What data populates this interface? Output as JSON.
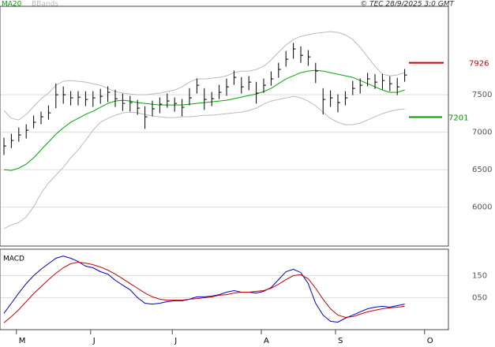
{
  "header": {
    "annotation": "© TEC 28/9/2025 3:0 GMT"
  },
  "chart_data": [
    {
      "type": "ohlc",
      "bar_color": "#000000",
      "high": [
        6926,
        6979,
        7063,
        7106,
        7222,
        7275,
        7358,
        7650,
        7610,
        7548,
        7548,
        7547,
        7548,
        7579,
        7612,
        7567,
        7514,
        7485,
        7431,
        7345,
        7421,
        7464,
        7516,
        7464,
        7442,
        7588,
        7716,
        7587,
        7537,
        7632,
        7715,
        7822,
        7735,
        7748,
        7671,
        7716,
        7811,
        7927,
        8084,
        8191,
        8146,
        8095,
        7926,
        7587,
        7558,
        7505,
        7548,
        7684,
        7716,
        7791,
        7778,
        7779,
        7747,
        7725,
        7843,
        null,
        null,
        null,
        null,
        null
      ],
      "low": [
        6696,
        6789,
        6873,
        6916,
        7052,
        7105,
        7168,
        7320,
        7380,
        7358,
        7358,
        7347,
        7338,
        7379,
        7402,
        7337,
        7284,
        7275,
        7231,
        7045,
        7211,
        7254,
        7326,
        7274,
        7212,
        7358,
        7516,
        7297,
        7347,
        7442,
        7485,
        7632,
        7515,
        7558,
        7381,
        7526,
        7621,
        7727,
        7874,
        7981,
        7926,
        7885,
        7656,
        7237,
        7338,
        7265,
        7358,
        7494,
        7516,
        7611,
        7578,
        7569,
        7547,
        7495,
        7673,
        null,
        null,
        null,
        null,
        null
      ],
      "close": [
        6816,
        6889,
        6963,
        7026,
        7132,
        7205,
        7258,
        7500,
        7500,
        7458,
        7468,
        7437,
        7458,
        7479,
        7532,
        7447,
        7384,
        7395,
        7321,
        7205,
        7311,
        7374,
        7416,
        7384,
        7332,
        7458,
        7626,
        7437,
        7447,
        7532,
        7605,
        7732,
        7605,
        7668,
        7521,
        7626,
        7711,
        7837,
        7974,
        8111,
        8026,
        8005,
        7816,
        7437,
        7458,
        7395,
        7458,
        7584,
        7626,
        7711,
        7668,
        7689,
        7647,
        7605,
        7763,
        null,
        null,
        null,
        null,
        null
      ],
      "series": [
        {
          "name": "MA20",
          "color": "#00aa00",
          "values": [
            6500,
            6490,
            6521,
            6574,
            6658,
            6763,
            6868,
            6974,
            7058,
            7132,
            7184,
            7237,
            7279,
            7332,
            7384,
            7416,
            7426,
            7416,
            7395,
            7384,
            7374,
            7363,
            7363,
            7363,
            7363,
            7374,
            7384,
            7395,
            7405,
            7416,
            7426,
            7447,
            7468,
            7489,
            7511,
            7542,
            7584,
            7647,
            7711,
            7753,
            7795,
            7816,
            7826,
            7816,
            7795,
            7774,
            7753,
            7732,
            7689,
            7647,
            7605,
            7563,
            7532,
            7532,
            7563,
            null,
            null,
            null,
            null,
            null
          ]
        },
        {
          "name": "BBands",
          "color": "#bbbbbb",
          "upper": [
            7289,
            7184,
            7163,
            7237,
            7342,
            7447,
            7521,
            7626,
            7679,
            7689,
            7679,
            7668,
            7647,
            7626,
            7584,
            7542,
            7521,
            7511,
            7500,
            7500,
            7511,
            7521,
            7542,
            7563,
            7605,
            7668,
            7711,
            7711,
            7721,
            7732,
            7753,
            7795,
            7816,
            7816,
            7837,
            7879,
            7963,
            8068,
            8163,
            8237,
            8279,
            8300,
            8321,
            8332,
            8342,
            8332,
            8300,
            8237,
            8132,
            8005,
            7879,
            7774,
            7753,
            7763,
            7795,
            null,
            null,
            null,
            null,
            null
          ],
          "lower": [
            5711,
            5763,
            5795,
            5868,
            6005,
            6184,
            6321,
            6426,
            6532,
            6658,
            6763,
            6889,
            7026,
            7132,
            7184,
            7226,
            7258,
            7268,
            7258,
            7237,
            7216,
            7205,
            7195,
            7195,
            7205,
            7205,
            7216,
            7226,
            7226,
            7237,
            7247,
            7258,
            7268,
            7289,
            7321,
            7374,
            7416,
            7437,
            7458,
            7479,
            7458,
            7416,
            7353,
            7268,
            7184,
            7132,
            7100,
            7100,
            7121,
            7163,
            7205,
            7247,
            7279,
            7300,
            7311,
            null,
            null,
            null,
            null,
            null
          ]
        }
      ],
      "levels": [
        {
          "value": 7926,
          "color": "#cc0000"
        },
        {
          "value": 7201,
          "color": "#009900"
        }
      ],
      "ylim": [
        5480,
        8680
      ],
      "yticks": [
        6000,
        6500,
        7000,
        7500
      ],
      "grid": true
    },
    {
      "type": "line",
      "title": "MACD",
      "categories": [
        null,
        null,
        "M",
        null,
        null,
        null,
        null,
        null,
        null,
        null,
        null,
        null,
        "J",
        null,
        null,
        null,
        null,
        null,
        null,
        null,
        null,
        null,
        null,
        "J",
        null,
        null,
        null,
        null,
        null,
        null,
        null,
        null,
        null,
        null,
        null,
        "A",
        null,
        null,
        null,
        null,
        null,
        null,
        null,
        null,
        null,
        "S",
        null,
        null,
        null,
        null,
        null,
        null,
        null,
        null,
        null,
        null,
        null,
        "O",
        null,
        null
      ],
      "series": [
        {
          "color": "#0000cc",
          "values": [
            -21,
            25,
            71,
            114,
            150,
            179,
            204,
            229,
            239,
            229,
            214,
            193,
            186,
            168,
            157,
            129,
            107,
            86,
            50,
            25,
            21,
            25,
            32,
            36,
            36,
            43,
            54,
            54,
            57,
            64,
            75,
            82,
            75,
            75,
            71,
            79,
            96,
            132,
            168,
            179,
            164,
            114,
            25,
            -29,
            -57,
            -61,
            -43,
            -29,
            -14,
            0,
            7,
            11,
            7,
            14,
            21,
            null,
            null,
            null,
            null,
            null
          ]
        },
        {
          "color": "#cc0000",
          "values": [
            -64,
            -36,
            -4,
            32,
            68,
            100,
            132,
            161,
            186,
            204,
            211,
            207,
            200,
            189,
            175,
            157,
            136,
            114,
            93,
            71,
            54,
            43,
            39,
            39,
            39,
            43,
            46,
            50,
            54,
            61,
            64,
            71,
            75,
            75,
            79,
            82,
            93,
            111,
            132,
            150,
            154,
            136,
            93,
            43,
            0,
            -29,
            -39,
            -36,
            -25,
            -14,
            -7,
            0,
            4,
            7,
            11,
            null,
            null,
            null,
            null,
            null
          ]
        }
      ],
      "ylim": [
        -95,
        270
      ],
      "yticks": [
        150,
        {
          "value": 50,
          "label": "050"
        }
      ],
      "grid": true
    }
  ]
}
